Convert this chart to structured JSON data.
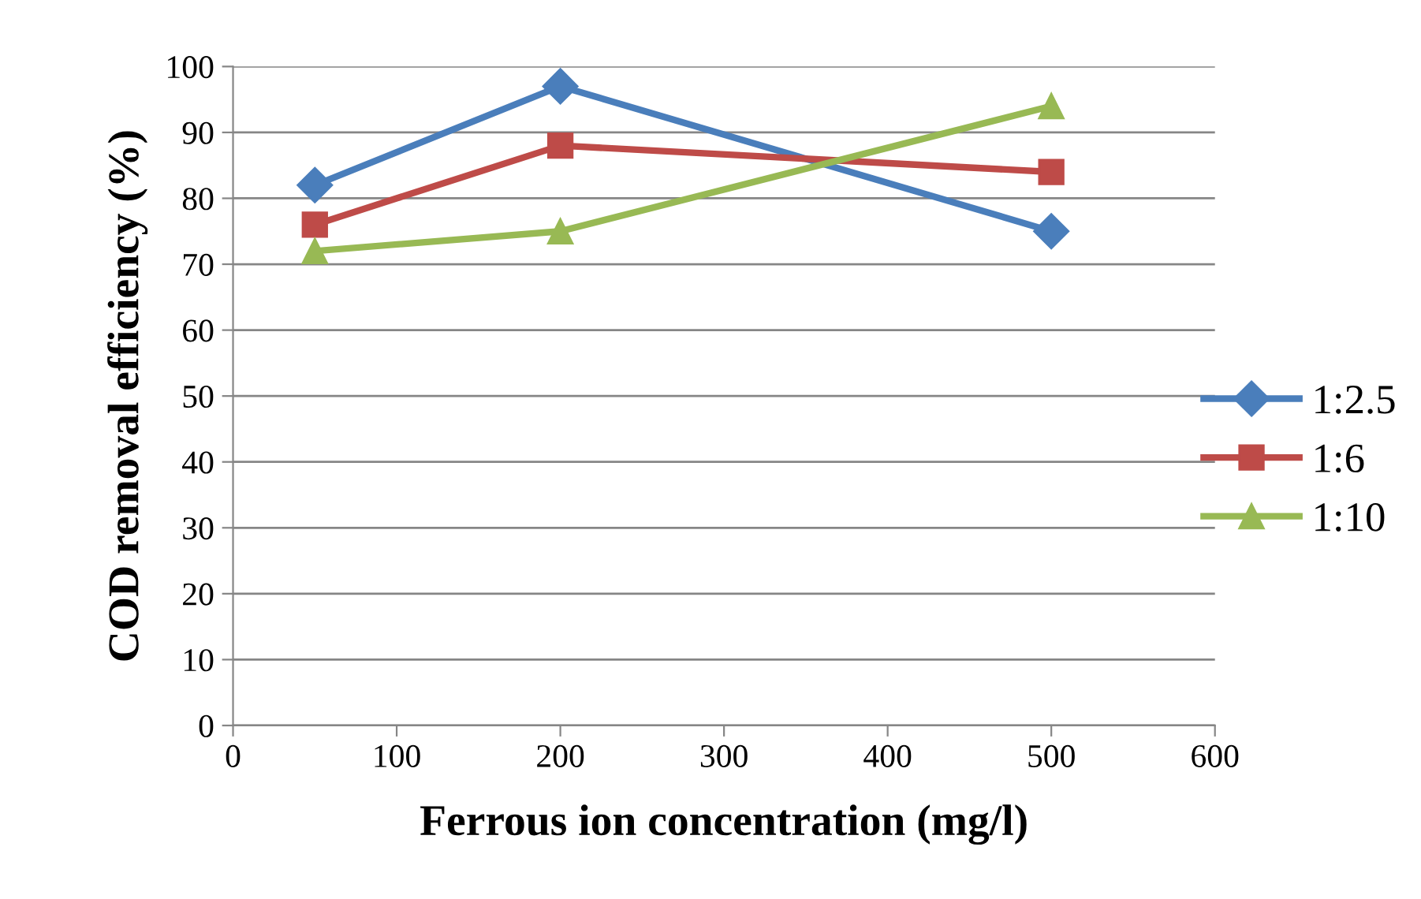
{
  "chart_data": {
    "type": "line",
    "xlabel": "Ferrous ion concentration (mg/l)",
    "ylabel": "COD removal efficiency (%)",
    "x": [
      50,
      200,
      500
    ],
    "series": [
      {
        "name": "1:2.5",
        "color": "#4a7ebb",
        "values": [
          82,
          97,
          75
        ],
        "marker": "diamond"
      },
      {
        "name": "1:6",
        "color": "#be4b48",
        "values": [
          76,
          88,
          84
        ],
        "marker": "square"
      },
      {
        "name": "1:10",
        "color": "#98b954",
        "values": [
          72,
          75,
          94
        ],
        "marker": "triangle"
      }
    ],
    "xlim": [
      0,
      600
    ],
    "xticks": [
      0,
      100,
      200,
      300,
      400,
      500,
      600
    ],
    "ylim": [
      0,
      100
    ],
    "yticks": [
      0,
      10,
      20,
      30,
      40,
      50,
      60,
      70,
      80,
      90,
      100
    ],
    "grid": "y",
    "legend": "right",
    "line_style": "solid"
  }
}
